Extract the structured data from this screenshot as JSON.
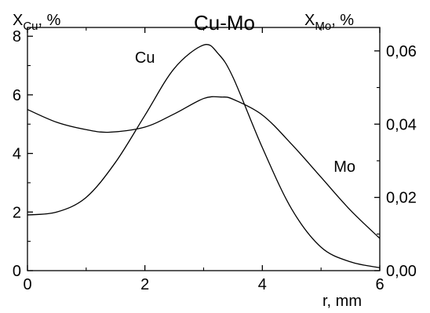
{
  "chart_data": {
    "type": "line",
    "title": "Cu-Mo",
    "xlabel": "r, mm",
    "ylabel_left": {
      "main": "X",
      "sub": "Cu",
      "suffix": ", %"
    },
    "ylabel_right": {
      "main": "X",
      "sub": "Mo",
      "suffix": ", %"
    },
    "xlim": [
      0,
      6
    ],
    "ylim_left": [
      0,
      8.3
    ],
    "ylim_right": [
      0,
      0.0664
    ],
    "x_ticks": [
      "0",
      "2",
      "4",
      "6"
    ],
    "y_left_ticks": [
      "0",
      "2",
      "4",
      "6",
      "8"
    ],
    "y_right_ticks": [
      "0,00",
      "0,02",
      "0,04",
      "0,06"
    ],
    "grid": false,
    "legend": "none",
    "series": [
      {
        "name": "Cu",
        "axis": "left",
        "x": [
          0,
          0.5,
          1.0,
          1.5,
          2.0,
          2.5,
          3.0,
          3.25,
          3.5,
          4.0,
          4.5,
          5.0,
          5.5,
          6.0
        ],
        "values": [
          1.9,
          2.0,
          2.5,
          3.7,
          5.3,
          6.9,
          7.7,
          7.4,
          6.6,
          4.2,
          2.1,
          0.8,
          0.3,
          0.1
        ]
      },
      {
        "name": "Mo",
        "axis": "right",
        "x": [
          0,
          0.5,
          1.0,
          1.4,
          2.0,
          2.5,
          3.0,
          3.3,
          3.5,
          4.0,
          4.5,
          5.0,
          5.5,
          6.0
        ],
        "values": [
          0.044,
          0.0405,
          0.0385,
          0.0378,
          0.0392,
          0.0428,
          0.047,
          0.0474,
          0.0468,
          0.0425,
          0.0345,
          0.0255,
          0.0165,
          0.0088
        ]
      }
    ]
  }
}
